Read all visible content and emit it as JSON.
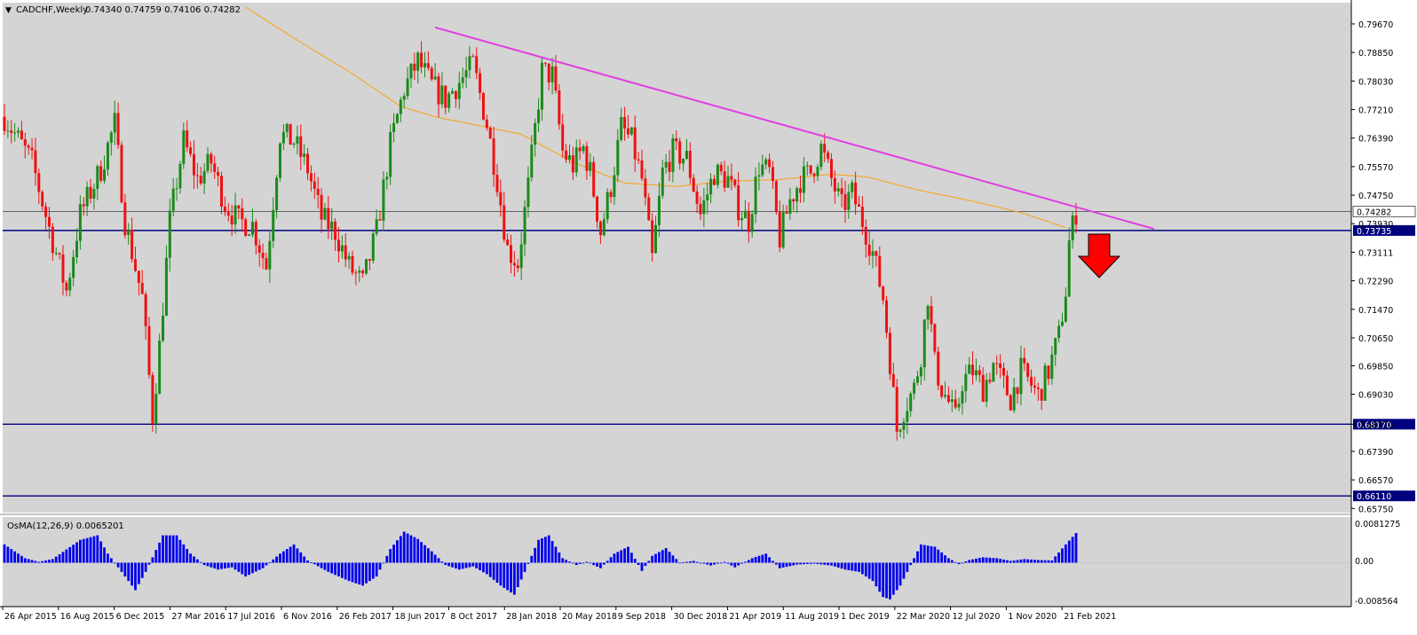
{
  "header": {
    "symbol_label": "CADCHF,Weekly",
    "ohlc": "0.74340 0.74759 0.74106 0.74282"
  },
  "indicator": {
    "label": "OsMA(12,26,9) 0.0065201",
    "axis_labels": [
      "0.0081275",
      "0.00",
      "-0.008564"
    ]
  },
  "colors": {
    "plot_bg": "#d4d4d4",
    "bull_candle": "#1a8a1a",
    "bear_candle": "#ee1111",
    "moving_average": "#f5a623",
    "trendline": "#e040e0",
    "level_line": "#00007f",
    "osma_bars": "#0000ee",
    "arrow": "#ff0000"
  },
  "chart_data": {
    "type": "candlestick",
    "symbol": "CADCHF",
    "timeframe": "Weekly",
    "y_ticks": [
      "0.79670",
      "0.78850",
      "0.78030",
      "0.77210",
      "0.76390",
      "0.75570",
      "0.74750",
      "0.73930",
      "0.73111",
      "0.72290",
      "0.71470",
      "0.70650",
      "0.69850",
      "0.69030",
      "0.68170",
      "0.67390",
      "0.66570",
      "0.65750"
    ],
    "ylim": [
      0.6563,
      0.8028
    ],
    "x_ticks": [
      "26 Apr 2015",
      "16 Aug 2015",
      "6 Dec 2015",
      "27 Mar 2016",
      "17 Jul 2016",
      "6 Nov 2016",
      "26 Feb 2017",
      "18 Jun 2017",
      "8 Oct 2017",
      "28 Jan 2018",
      "20 May 2018",
      "9 Sep 2018",
      "30 Dec 2018",
      "21 Apr 2019",
      "11 Aug 2019",
      "1 Dec 2019",
      "22 Mar 2020",
      "12 Jul 2020",
      "1 Nov 2020",
      "21 Feb 2021"
    ],
    "last_price": 0.74282,
    "last_price_label": "0.74282",
    "levels": [
      {
        "value": 0.73735,
        "label": "0.73735"
      },
      {
        "value": 0.6817,
        "label": "0.68170"
      },
      {
        "value": 0.6611,
        "label": "0.66110"
      }
    ],
    "trendline": {
      "from": [
        0.7957,
        "2017-07"
      ],
      "to": [
        0.7378,
        "2021-05"
      ]
    },
    "anchors": [
      [
        0,
        0.77
      ],
      [
        8,
        0.757
      ],
      [
        13,
        0.738
      ],
      [
        18,
        0.72
      ],
      [
        22,
        0.742
      ],
      [
        28,
        0.755
      ],
      [
        32,
        0.768
      ],
      [
        35,
        0.74
      ],
      [
        40,
        0.718
      ],
      [
        43,
        0.684
      ],
      [
        45,
        0.704
      ],
      [
        48,
        0.74
      ],
      [
        52,
        0.763
      ],
      [
        56,
        0.752
      ],
      [
        60,
        0.757
      ],
      [
        64,
        0.745
      ],
      [
        68,
        0.74
      ],
      [
        72,
        0.739
      ],
      [
        76,
        0.727
      ],
      [
        80,
        0.765
      ],
      [
        84,
        0.763
      ],
      [
        88,
        0.755
      ],
      [
        92,
        0.741
      ],
      [
        96,
        0.737
      ],
      [
        100,
        0.727
      ],
      [
        104,
        0.722
      ],
      [
        108,
        0.737
      ],
      [
        112,
        0.762
      ],
      [
        116,
        0.778
      ],
      [
        120,
        0.786
      ],
      [
        124,
        0.779
      ],
      [
        128,
        0.775
      ],
      [
        132,
        0.78
      ],
      [
        136,
        0.785
      ],
      [
        140,
        0.768
      ],
      [
        143,
        0.752
      ],
      [
        146,
        0.732
      ],
      [
        149,
        0.728
      ],
      [
        152,
        0.75
      ],
      [
        156,
        0.783
      ],
      [
        159,
        0.782
      ],
      [
        162,
        0.76
      ],
      [
        165,
        0.756
      ],
      [
        168,
        0.761
      ],
      [
        170,
        0.754
      ],
      [
        173,
        0.737
      ],
      [
        176,
        0.75
      ],
      [
        179,
        0.767
      ],
      [
        182,
        0.763
      ],
      [
        185,
        0.752
      ],
      [
        188,
        0.729
      ],
      [
        191,
        0.754
      ],
      [
        194,
        0.76
      ],
      [
        198,
        0.758
      ],
      [
        202,
        0.742
      ],
      [
        206,
        0.754
      ],
      [
        210,
        0.752
      ],
      [
        213,
        0.744
      ],
      [
        216,
        0.74
      ],
      [
        219,
        0.756
      ],
      [
        222,
        0.754
      ],
      [
        225,
        0.735
      ],
      [
        228,
        0.746
      ],
      [
        231,
        0.752
      ],
      [
        234,
        0.754
      ],
      [
        237,
        0.761
      ],
      [
        240,
        0.752
      ],
      [
        243,
        0.744
      ],
      [
        246,
        0.748
      ],
      [
        249,
        0.74
      ],
      [
        252,
        0.731
      ],
      [
        255,
        0.718
      ],
      [
        257,
        0.7
      ],
      [
        259,
        0.68
      ],
      [
        261,
        0.686
      ],
      [
        264,
        0.692
      ],
      [
        266,
        0.702
      ],
      [
        268,
        0.719
      ],
      [
        270,
        0.699
      ],
      [
        272,
        0.692
      ],
      [
        274,
        0.688
      ],
      [
        276,
        0.683
      ],
      [
        278,
        0.694
      ],
      [
        281,
        0.697
      ],
      [
        284,
        0.692
      ],
      [
        287,
        0.699
      ],
      [
        290,
        0.693
      ],
      [
        292,
        0.689
      ],
      [
        295,
        0.697
      ],
      [
        298,
        0.693
      ],
      [
        300,
        0.69
      ],
      [
        303,
        0.697
      ],
      [
        306,
        0.707
      ],
      [
        308,
        0.72
      ],
      [
        309,
        0.734
      ],
      [
        311,
        0.7428
      ]
    ],
    "moving_average": [
      [
        70,
        0.8015
      ],
      [
        85,
        0.792
      ],
      [
        100,
        0.783
      ],
      [
        115,
        0.773
      ],
      [
        125,
        0.77
      ],
      [
        135,
        0.768
      ],
      [
        150,
        0.765
      ],
      [
        165,
        0.757
      ],
      [
        180,
        0.751
      ],
      [
        195,
        0.75
      ],
      [
        210,
        0.7515
      ],
      [
        225,
        0.752
      ],
      [
        240,
        0.7535
      ],
      [
        250,
        0.7528
      ],
      [
        265,
        0.749
      ],
      [
        280,
        0.746
      ],
      [
        295,
        0.7425
      ],
      [
        308,
        0.7382
      ]
    ],
    "osma": [
      [
        0,
        0.004
      ],
      [
        6,
        0.001
      ],
      [
        10,
        0.0002
      ],
      [
        14,
        0.0008
      ],
      [
        22,
        0.005
      ],
      [
        27,
        0.006
      ],
      [
        30,
        0.002
      ],
      [
        34,
        -0.002
      ],
      [
        38,
        -0.006
      ],
      [
        41,
        -0.002
      ],
      [
        46,
        0.006
      ],
      [
        50,
        0.006
      ],
      [
        54,
        0.002
      ],
      [
        58,
        -0.0005
      ],
      [
        62,
        -0.0015
      ],
      [
        66,
        -0.001
      ],
      [
        70,
        -0.003
      ],
      [
        75,
        -0.0012
      ],
      [
        80,
        0.002
      ],
      [
        84,
        0.004
      ],
      [
        88,
        0.0005
      ],
      [
        94,
        -0.002
      ],
      [
        100,
        -0.004
      ],
      [
        104,
        -0.005
      ],
      [
        108,
        -0.003
      ],
      [
        112,
        0.003
      ],
      [
        116,
        0.0068
      ],
      [
        120,
        0.0052
      ],
      [
        124,
        0.0025
      ],
      [
        128,
        -0.0005
      ],
      [
        132,
        -0.0015
      ],
      [
        136,
        -0.0008
      ],
      [
        140,
        -0.0025
      ],
      [
        144,
        -0.005
      ],
      [
        148,
        -0.007
      ],
      [
        151,
        -0.002
      ],
      [
        155,
        0.005
      ],
      [
        158,
        0.006
      ],
      [
        162,
        0.001
      ],
      [
        166,
        -0.0005
      ],
      [
        169,
        0.0002
      ],
      [
        173,
        -0.0012
      ],
      [
        177,
        0.002
      ],
      [
        181,
        0.0035
      ],
      [
        185,
        -0.0018
      ],
      [
        188,
        0.0015
      ],
      [
        192,
        0.0032
      ],
      [
        196,
        0.0
      ],
      [
        200,
        0.0004
      ],
      [
        205,
        -0.0006
      ],
      [
        209,
        0.0002
      ],
      [
        212,
        -0.001
      ],
      [
        217,
        0.001
      ],
      [
        221,
        0.002
      ],
      [
        225,
        -0.0012
      ],
      [
        230,
        -0.0004
      ],
      [
        235,
        -0.0002
      ],
      [
        240,
        -0.0006
      ],
      [
        244,
        -0.0015
      ],
      [
        248,
        -0.002
      ],
      [
        252,
        -0.004
      ],
      [
        255,
        -0.0075
      ],
      [
        257,
        -0.008
      ],
      [
        260,
        -0.005
      ],
      [
        262,
        -0.002
      ],
      [
        266,
        0.004
      ],
      [
        270,
        0.0035
      ],
      [
        274,
        0.001
      ],
      [
        277,
        -0.0003
      ],
      [
        280,
        0.0006
      ],
      [
        284,
        0.0012
      ],
      [
        288,
        0.001
      ],
      [
        292,
        0.0004
      ],
      [
        296,
        0.0008
      ],
      [
        300,
        0.0006
      ],
      [
        304,
        0.0005
      ],
      [
        308,
        0.004
      ],
      [
        311,
        0.0065
      ]
    ],
    "osma_ylim": [
      -0.0096,
      0.01
    ]
  }
}
